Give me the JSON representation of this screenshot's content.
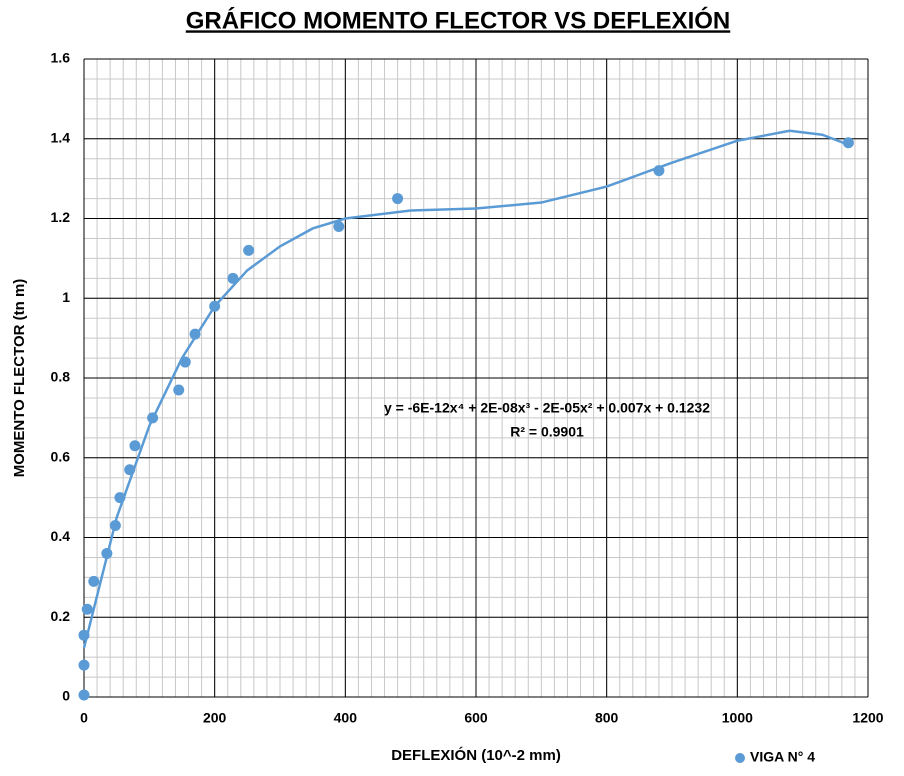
{
  "chart_data": {
    "type": "scatter",
    "title": "GRÁFICO MOMENTO FLECTOR VS DEFLEXIÓN",
    "xlabel": "DEFLEXIÓN  (10^-2 mm)",
    "ylabel": "MOMENTO  FLECTOR  (tn m)",
    "xlim": [
      0,
      1200
    ],
    "ylim": [
      0,
      1.6
    ],
    "xticks": [
      0,
      200,
      400,
      600,
      800,
      1000,
      1200
    ],
    "yticks": [
      0,
      0.2,
      0.4,
      0.6,
      0.8,
      1,
      1.2,
      1.4,
      1.6
    ],
    "grid": true,
    "minor_grid": {
      "x": 20,
      "y": 0.05
    },
    "legend": "bottom-right",
    "series": [
      {
        "name": "VIGA N° 4",
        "color": "#5b9bd5",
        "x": [
          0,
          0,
          0,
          5,
          15,
          35,
          48,
          55,
          70,
          78,
          105,
          145,
          155,
          170,
          200,
          228,
          252,
          390,
          480,
          880,
          1170
        ],
        "values": [
          0.005,
          0.08,
          0.155,
          0.22,
          0.29,
          0.36,
          0.43,
          0.5,
          0.57,
          0.63,
          0.7,
          0.77,
          0.84,
          0.91,
          0.98,
          1.05,
          1.12,
          1.18,
          1.25,
          1.32,
          1.39
        ]
      }
    ],
    "trendline": {
      "color": "#5b9bd5",
      "equation": "y = -6E-12x⁴ + 2E-08x³ - 2E-05x² + 0.007x + 0.1232",
      "r2": "R² = 0.9901",
      "x": [
        0,
        50,
        100,
        150,
        200,
        250,
        300,
        350,
        400,
        500,
        600,
        700,
        800,
        900,
        1000,
        1080,
        1130,
        1170
      ],
      "values": [
        0.123,
        0.45,
        0.68,
        0.85,
        0.98,
        1.07,
        1.13,
        1.175,
        1.2,
        1.22,
        1.225,
        1.24,
        1.28,
        1.34,
        1.395,
        1.42,
        1.41,
        1.385
      ]
    }
  }
}
